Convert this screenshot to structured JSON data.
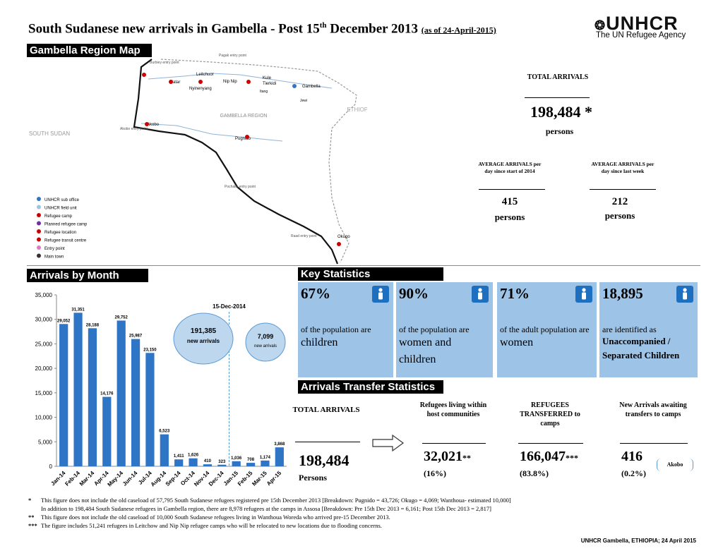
{
  "header": {
    "title": "South Sudanese new arrivals in Gambella - Post 15",
    "title_sup": "th",
    "title_end": " December 2013",
    "date": "(as of 24-April-2015)",
    "logo": "UNHCR",
    "logo_sub": "The UN Refugee Agency"
  },
  "map": {
    "heading": "Gambella Region Map",
    "labels": [
      "SOUTH SUDAN",
      "ETHIOPIA",
      "GAMBELLA REGION",
      "Gambella",
      "Kule",
      "Tierkidi",
      "Leitchuor",
      "Nip Nip",
      "Matar",
      "Pugnido",
      "Okugo",
      "Akobo",
      "Nyinenyang",
      "Pagak entry point",
      "Burbiey entry point",
      "Akobo entry point",
      "Pochalla entry point",
      "Raad entry point",
      "Jewi",
      "Itang"
    ],
    "legend": [
      "UNHCR sub office",
      "UNHCR field unit",
      "Refugee camp",
      "Planned refugee camp",
      "Refugee location",
      "Refugee transit centre",
      "Entry point",
      "Main town"
    ]
  },
  "summary": {
    "total_label": "TOTAL ARRIVALS",
    "total": "198,484",
    "total_mark": "*",
    "total_unit": "persons",
    "avg": [
      {
        "label": "AVERAGE ARRIVALS per day since start of 2014",
        "value": "415",
        "unit": "persons"
      },
      {
        "label": "AVERAGE ARRIVALS per day since last week",
        "value": "212",
        "unit": "persons"
      }
    ]
  },
  "chart_data": {
    "type": "bar",
    "title": "Arrivals by Month",
    "categories": [
      "Jan-14",
      "Feb-14",
      "Mar-14",
      "Apr-14",
      "May-14",
      "Jun-14",
      "Jul-14",
      "Aug-14",
      "Sep-14",
      "Oct-14",
      "Nov-14",
      "Dec-14",
      "Jan-15",
      "Feb-15",
      "Mar-15",
      "Apr-15"
    ],
    "values": [
      29052,
      31351,
      28188,
      14176,
      29752,
      25987,
      23150,
      6523,
      1411,
      1626,
      410,
      323,
      1036,
      708,
      1174,
      3868
    ],
    "value_labels": [
      "29,052",
      "31,351",
      "28,188",
      "14,176",
      "29,752",
      "25,987",
      "23,150",
      "6,523",
      "1,411",
      "1,626",
      "410",
      "323",
      "1,036",
      "708",
      "1,174",
      "3,868"
    ],
    "color": "#2e75c6",
    "ylim": [
      0,
      35000
    ],
    "yticks": [
      0,
      {
        "value": 5000,
        "label": "5,000"
      },
      {
        "value": 10000,
        "label": "10,000"
      },
      {
        "value": 15000,
        "label": "15,000"
      },
      {
        "value": 20000,
        "label": "20,000"
      },
      {
        "value": 25000,
        "label": "25,000"
      },
      {
        "value": 30000,
        "label": "30,000"
      },
      {
        "value": 35000,
        "label": "35,000"
      }
    ],
    "grid": false,
    "annotations": [
      "15-Dec-2014",
      "191,385",
      "new arrivals",
      "7,099",
      "new arrivals"
    ]
  },
  "key_statistics": {
    "heading": "Key Statistics",
    "items": [
      {
        "value": "67%",
        "text": "of the population are",
        "highlight": "children"
      },
      {
        "value": "90%",
        "text": "of the population are",
        "highlight": "women and children"
      },
      {
        "value": "71%",
        "text": "of the adult population are",
        "highlight": "women"
      },
      {
        "value": "18,895",
        "text": "are identified as",
        "highlight": "Unaccompanied / Separated Children"
      }
    ]
  },
  "transfer": {
    "heading": "Arrivals Transfer Statistics",
    "total_label": "TOTAL ARRIVALS",
    "total": "198,484",
    "total_unit": "Persons",
    "columns": [
      {
        "label": "Refugees living within host communities",
        "value": "32,021",
        "mark": "**",
        "share": "(16%)"
      },
      {
        "label": "REFUGEES TRANSFERRED to camps",
        "value": "166,047",
        "mark": "***",
        "share": "(83.8%)"
      },
      {
        "label": "New Arrivals awaiting transfers to camps",
        "value": "416",
        "share": "(0.2%)",
        "note": "Akobo"
      }
    ]
  },
  "footnotes": [
    {
      "mark": "*",
      "text": "This figure does not include the old caseload of 57,795 South Sudanese refugees registered pre 15th December 2013 [Breakdown: Pugnido = 43,726; Okugo = 4,069; Wanthoua- estimated 10,000]"
    },
    {
      "text": "In addition to 198,484 South Sudanese refugees in Gambella region, there are 8,978 refugees at the camps in Assosa [Breakdown: Pre 15th Dec 2013 = 6,161; Post 15th Dec 2013 = 2,817]"
    },
    {
      "mark": "**",
      "text": "This figure does not include the old caseload of 10,000 South Sudanese refugees living in Wanthoua Woreda who arrived pre-15 December 2013."
    },
    {
      "mark": "***",
      "text": "The figure includes 51,241 refugees in Leitchow and Nip Nip refugee camps who will be relocated to new locations due to flooding concerns."
    }
  ],
  "footer": "UNHCR Gambella, ETHIOPIA; 24 April 2015"
}
